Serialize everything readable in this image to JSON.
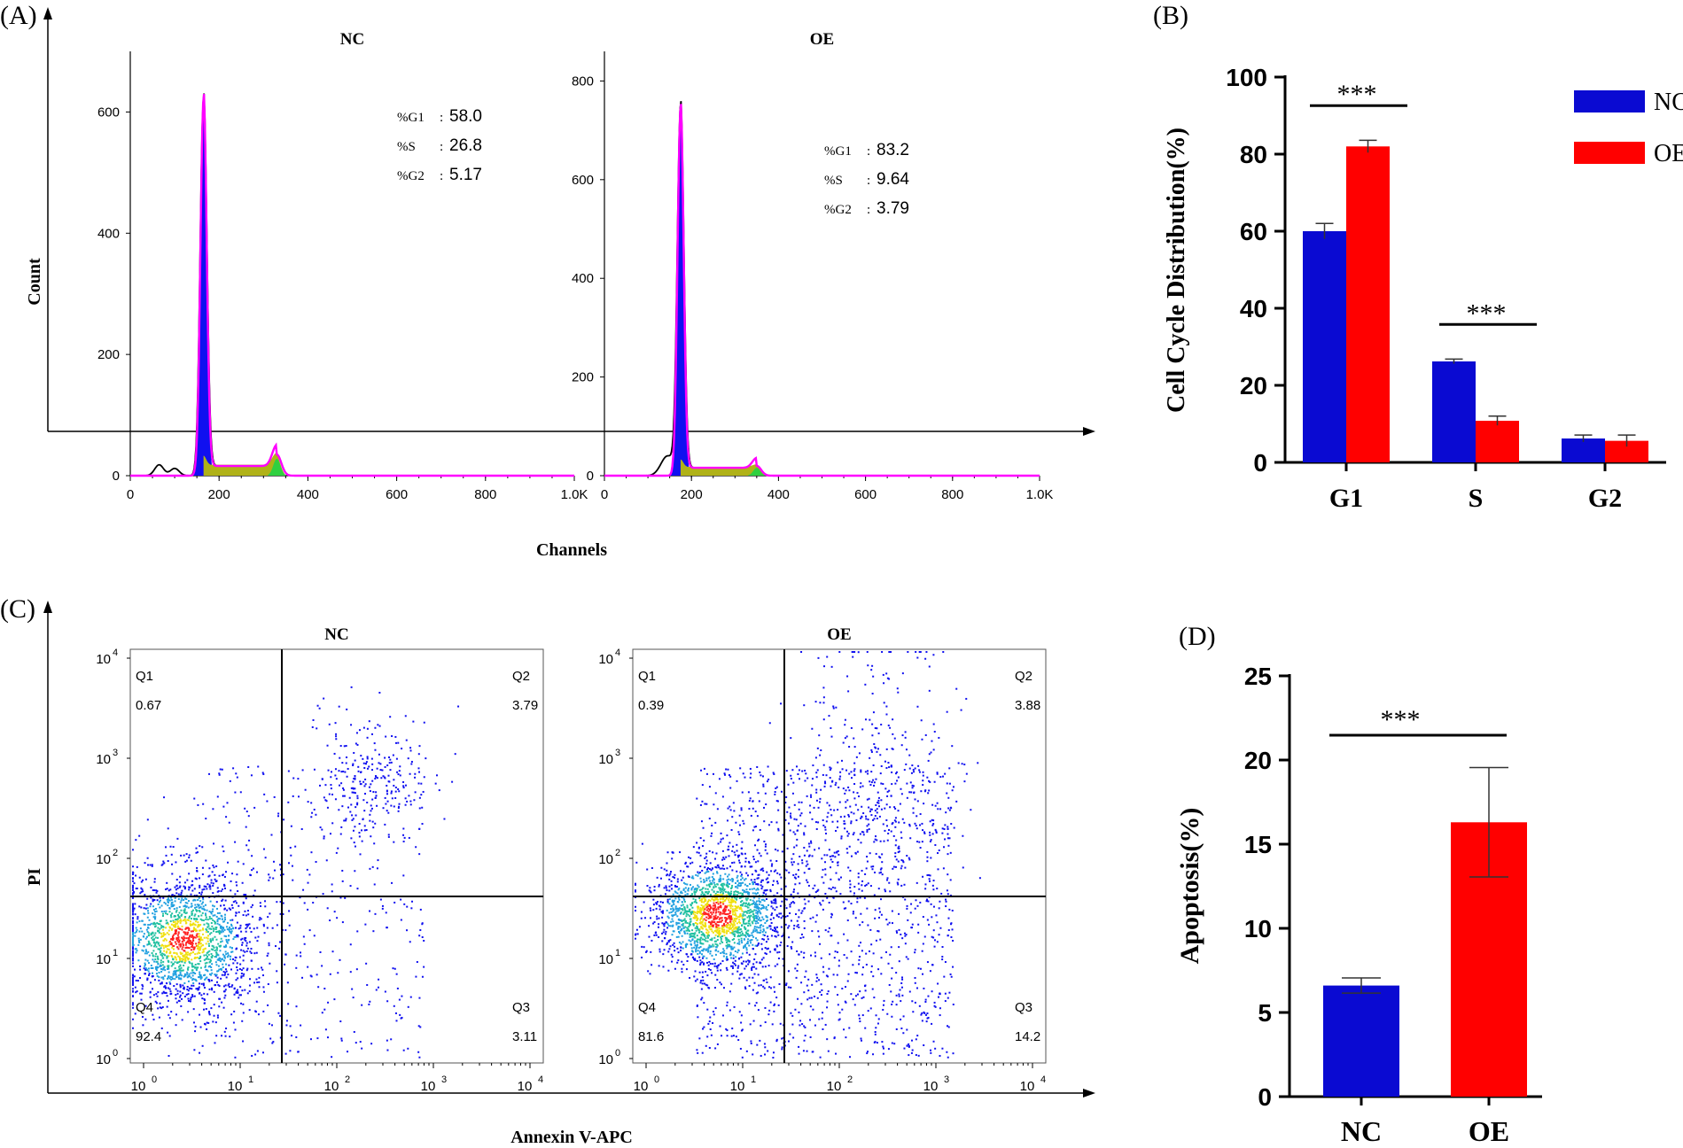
{
  "chart_data": [
    {
      "panel": "(A)",
      "type": "histogram",
      "xlabel": "Channels",
      "ylabel": "Count",
      "subplots": [
        {
          "title": "NC",
          "yticks": [
            0,
            200,
            400,
            600
          ],
          "xticks": [
            "0",
            "200",
            "400",
            "600",
            "800",
            "1.0K"
          ],
          "ylim": [
            0,
            700
          ],
          "xlim": [
            0,
            1000
          ],
          "stats": [
            {
              "label": "%G1",
              "value": "58.0"
            },
            {
              "label": "%S",
              "value": "26.8"
            },
            {
              "label": "%G2",
              "value": "5.17"
            }
          ],
          "g1_peak": {
            "channel": 165,
            "count": 620
          },
          "g2_peak": {
            "channel": 330,
            "count": 35
          }
        },
        {
          "title": "OE",
          "yticks": [
            0,
            200,
            400,
            600,
            800
          ],
          "xticks": [
            "0",
            "200",
            "400",
            "600",
            "800",
            "1.0K"
          ],
          "ylim": [
            0,
            860
          ],
          "xlim": [
            0,
            1000
          ],
          "stats": [
            {
              "label": "%G1",
              "value": "83.2"
            },
            {
              "label": "%S",
              "value": "9.64"
            },
            {
              "label": "%G2",
              "value": "3.79"
            }
          ],
          "g1_peak": {
            "channel": 175,
            "count": 745
          },
          "g2_peak": {
            "channel": 350,
            "count": 20
          }
        }
      ]
    },
    {
      "panel": "(B)",
      "type": "bar",
      "ylabel": "Cell Cycle Distribution(%)",
      "categories": [
        "G1",
        "S",
        "G2"
      ],
      "ylim": [
        0,
        100
      ],
      "yticks": [
        0,
        20,
        40,
        60,
        80,
        100
      ],
      "series": [
        {
          "name": "NC",
          "color": "#0a0ad2",
          "values": [
            60,
            26.2,
            6.2
          ],
          "errors": [
            2.0,
            0.6,
            0.9
          ]
        },
        {
          "name": "OE",
          "color": "#ff0000",
          "values": [
            82,
            10.8,
            5.6
          ],
          "errors": [
            1.6,
            1.2,
            1.5
          ]
        }
      ],
      "significance": [
        {
          "category": "G1",
          "label": "***"
        },
        {
          "category": "S",
          "label": "***"
        }
      ],
      "legend": "top-right"
    },
    {
      "panel": "(C)",
      "type": "scatter",
      "xlabel": "Annexin V-APC",
      "ylabel": "PI",
      "subplots": [
        {
          "title": "NC",
          "quadrants": [
            {
              "name": "Q1",
              "value": "0.67"
            },
            {
              "name": "Q2",
              "value": "3.79"
            },
            {
              "name": "Q3",
              "value": "3.11"
            },
            {
              "name": "Q4",
              "value": "92.4"
            }
          ]
        },
        {
          "title": "OE",
          "quadrants": [
            {
              "name": "Q1",
              "value": "0.39"
            },
            {
              "name": "Q2",
              "value": "3.88"
            },
            {
              "name": "Q3",
              "value": "14.2"
            },
            {
              "name": "Q4",
              "value": "81.6"
            }
          ]
        }
      ],
      "axis_ticks": [
        "10",
        "0",
        "1",
        "2",
        "3",
        "4"
      ]
    },
    {
      "panel": "(D)",
      "type": "bar",
      "ylabel": "Apoptosis(%)",
      "categories": [
        "NC",
        "OE"
      ],
      "ylim": [
        0,
        25
      ],
      "yticks": [
        0,
        5,
        10,
        15,
        20,
        25
      ],
      "series": [
        {
          "name": "Apoptosis",
          "values": [
            6.6,
            16.3
          ],
          "errors": [
            0.45,
            3.25
          ],
          "colors": [
            "#0a0ad2",
            "#ff0000"
          ]
        }
      ],
      "significance": [
        {
          "label": "***"
        }
      ]
    }
  ]
}
